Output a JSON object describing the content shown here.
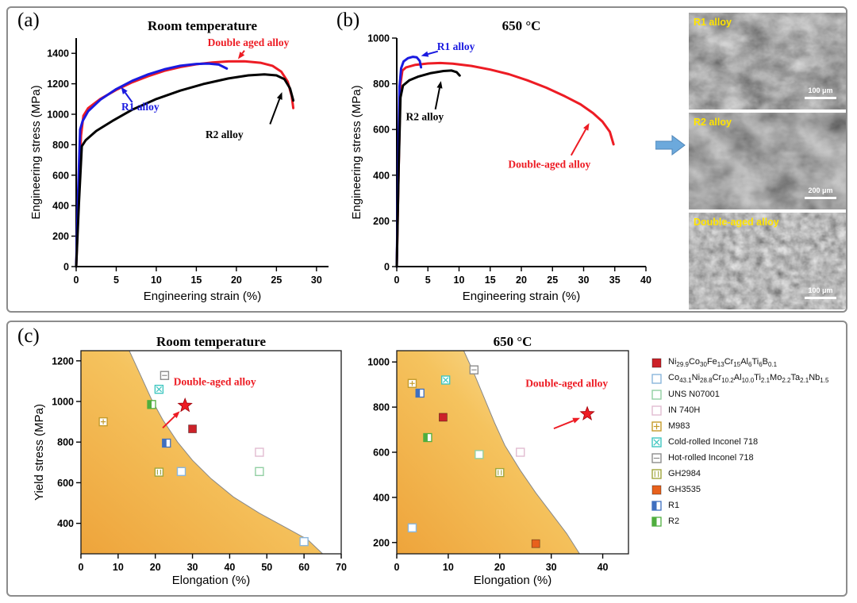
{
  "panels": {
    "a": "(a)",
    "b": "(b)",
    "c": "(c)"
  },
  "colors": {
    "red": "#ed1c24",
    "blue": "#1a1ae0",
    "black": "#000000",
    "arrow_blue": "#6ca9dc",
    "gold_region": [
      "#eea43b",
      "#f5c35e",
      "#fbeab0"
    ]
  },
  "sem": {
    "items": [
      {
        "label": "R1 alloy",
        "scale": "100 μm"
      },
      {
        "label": "R2 alloy",
        "scale": "200 μm"
      },
      {
        "label": "Double-aged alloy",
        "scale": "100 μm"
      }
    ]
  },
  "legend": {
    "items": [
      {
        "key": "ni",
        "label": "Ni_{29.9}Co_{30}Fe_{13}Cr_{15}Al_{6}Ti_{6}B_{0.1}",
        "marker": {
          "style": "filled",
          "color": "#cc2229"
        }
      },
      {
        "key": "co",
        "label": "Co_{43.1}Ni_{28.8}Cr_{10.2}Al_{10.0}Ti_{2.1}Mo_{2.2}Ta_{2.1}Nb_{1.5}",
        "marker": {
          "style": "open",
          "color": "#8ab6dc"
        }
      },
      {
        "key": "uns",
        "label": "UNS N07001",
        "marker": {
          "style": "open",
          "color": "#92cfa3"
        }
      },
      {
        "key": "in740h",
        "label": "IN 740H",
        "marker": {
          "style": "open",
          "color": "#e2bcd1"
        }
      },
      {
        "key": "m983",
        "label": "M983",
        "marker": {
          "style": "plus",
          "color": "#c49b2b"
        }
      },
      {
        "key": "cr718",
        "label": "Cold-rolled Inconel 718",
        "marker": {
          "style": "x",
          "color": "#3ec6c0"
        }
      },
      {
        "key": "hr718",
        "label": "Hot-rolled Inconel 718",
        "marker": {
          "style": "hlines",
          "color": "#8d8d8d"
        }
      },
      {
        "key": "gh2984",
        "label": "GH2984",
        "marker": {
          "style": "vlines",
          "color": "#a0a63c"
        }
      },
      {
        "key": "gh3535",
        "label": "GH3535",
        "marker": {
          "style": "filled",
          "color": "#e8611c"
        }
      },
      {
        "key": "r1",
        "label": "R1",
        "marker": {
          "style": "halfleft",
          "color": "#3f6fbf"
        }
      },
      {
        "key": "r2",
        "label": "R2",
        "marker": {
          "style": "halfleft",
          "color": "#4fae3e"
        }
      }
    ]
  },
  "chart_data": [
    {
      "id": "a",
      "type": "line",
      "title": "Room temperature",
      "xlabel": "Engineering strain (%)",
      "ylabel": "Engineering stress (MPa)",
      "xlim": [
        0,
        31.5
      ],
      "ylim": [
        0,
        1500
      ],
      "xticks": [
        0,
        5,
        10,
        15,
        20,
        25,
        30
      ],
      "yticks": [
        0,
        200,
        400,
        600,
        800,
        1000,
        1200,
        1400
      ],
      "series": [
        {
          "name": "Double aged alloy",
          "color": "#ed1c24",
          "points": [
            [
              0,
              0
            ],
            [
              0.3,
              430
            ],
            [
              0.6,
              860
            ],
            [
              0.9,
              990
            ],
            [
              1.5,
              1040
            ],
            [
              3,
              1100
            ],
            [
              5,
              1160
            ],
            [
              7,
              1210
            ],
            [
              9,
              1250
            ],
            [
              11,
              1285
            ],
            [
              13,
              1310
            ],
            [
              15,
              1328
            ],
            [
              17,
              1340
            ],
            [
              19,
              1347
            ],
            [
              21,
              1348
            ],
            [
              23,
              1338
            ],
            [
              24.5,
              1318
            ],
            [
              25.6,
              1280
            ],
            [
              26.4,
              1215
            ],
            [
              26.9,
              1120
            ],
            [
              27.1,
              1040
            ]
          ]
        },
        {
          "name": "R1 alloy",
          "color": "#1a1ae0",
          "points": [
            [
              0,
              0
            ],
            [
              0.25,
              500
            ],
            [
              0.5,
              900
            ],
            [
              0.8,
              955
            ],
            [
              1.5,
              1020
            ],
            [
              3,
              1095
            ],
            [
              5,
              1165
            ],
            [
              7,
              1220
            ],
            [
              9,
              1262
            ],
            [
              11,
              1295
            ],
            [
              13,
              1318
            ],
            [
              15,
              1330
            ],
            [
              16.5,
              1333
            ],
            [
              17.8,
              1326
            ],
            [
              18.8,
              1300
            ]
          ]
        },
        {
          "name": "R2 alloy",
          "color": "#000000",
          "points": [
            [
              0,
              0
            ],
            [
              0.35,
              420
            ],
            [
              0.7,
              790
            ],
            [
              1.2,
              830
            ],
            [
              2.5,
              890
            ],
            [
              4.5,
              955
            ],
            [
              7,
              1030
            ],
            [
              10,
              1100
            ],
            [
              13,
              1155
            ],
            [
              16,
              1200
            ],
            [
              19,
              1235
            ],
            [
              21.5,
              1255
            ],
            [
              23.5,
              1262
            ],
            [
              25,
              1255
            ],
            [
              26,
              1230
            ],
            [
              26.7,
              1170
            ],
            [
              27.1,
              1090
            ]
          ]
        }
      ],
      "annotations": [
        {
          "text": "Double aged alloy",
          "color": "#ed1c24",
          "tx": 21.5,
          "ty": 1448,
          "arrow": [
            21,
            1418,
            20.2,
            1362
          ]
        },
        {
          "text": "R1 alloy",
          "color": "#1a1ae0",
          "tx": 8,
          "ty": 1025,
          "arrow": [
            7,
            1078,
            5.6,
            1180
          ]
        },
        {
          "text": "R2 alloy",
          "color": "#000000",
          "tx": 18.5,
          "ty": 845,
          "arrow": [
            24.2,
            935,
            25.7,
            1145
          ]
        }
      ]
    },
    {
      "id": "b",
      "type": "line",
      "title": "650 °C",
      "xlabel": "Engineering strain (%)",
      "ylabel": "Engineering stress (MPa)",
      "xlim": [
        0,
        40
      ],
      "ylim": [
        0,
        1000
      ],
      "xticks": [
        0,
        5,
        10,
        15,
        20,
        25,
        30,
        35,
        40
      ],
      "yticks": [
        0,
        200,
        400,
        600,
        800,
        1000
      ],
      "series": [
        {
          "name": "Double-aged alloy",
          "color": "#ed1c24",
          "points": [
            [
              0,
              0
            ],
            [
              0.3,
              430
            ],
            [
              0.6,
              800
            ],
            [
              0.9,
              858
            ],
            [
              1.5,
              872
            ],
            [
              3,
              883
            ],
            [
              5,
              889
            ],
            [
              7,
              891
            ],
            [
              9,
              888
            ],
            [
              12,
              878
            ],
            [
              15,
              862
            ],
            [
              18,
              842
            ],
            [
              21,
              815
            ],
            [
              24,
              783
            ],
            [
              27,
              745
            ],
            [
              29.5,
              710
            ],
            [
              31.5,
              672
            ],
            [
              33,
              635
            ],
            [
              34.2,
              590
            ],
            [
              34.8,
              535
            ]
          ]
        },
        {
          "name": "R1 alloy",
          "color": "#1a1ae0",
          "points": [
            [
              0,
              0
            ],
            [
              0.2,
              400
            ],
            [
              0.45,
              790
            ],
            [
              0.7,
              868
            ],
            [
              1.1,
              898
            ],
            [
              1.8,
              912
            ],
            [
              2.6,
              918
            ],
            [
              3.2,
              916
            ],
            [
              3.7,
              900
            ],
            [
              3.9,
              872
            ]
          ]
        },
        {
          "name": "R2 alloy",
          "color": "#000000",
          "points": [
            [
              0,
              0
            ],
            [
              0.3,
              430
            ],
            [
              0.6,
              740
            ],
            [
              1,
              792
            ],
            [
              2,
              815
            ],
            [
              3.5,
              832
            ],
            [
              5.5,
              847
            ],
            [
              7.5,
              856
            ],
            [
              8.8,
              858
            ],
            [
              9.6,
              851
            ],
            [
              10.1,
              836
            ]
          ]
        }
      ],
      "annotations": [
        {
          "text": "R1 alloy",
          "color": "#1a1ae0",
          "tx": 9.5,
          "ty": 948,
          "arrow": [
            6.6,
            942,
            3.9,
            922
          ]
        },
        {
          "text": "R2 alloy",
          "color": "#000000",
          "tx": 4.5,
          "ty": 640,
          "arrow": [
            6.2,
            688,
            7.1,
            812
          ]
        },
        {
          "text": "Double-aged alloy",
          "color": "#ed1c24",
          "tx": 24.5,
          "ty": 432,
          "arrow": [
            28,
            487,
            30.9,
            628
          ]
        }
      ]
    },
    {
      "id": "c1",
      "type": "scatter",
      "title": "Room temperature",
      "xlabel": "Elongation (%)",
      "ylabel": "Yield stress (MPa)",
      "xlim": [
        0,
        70
      ],
      "ylim": [
        250,
        1250
      ],
      "xticks": [
        0,
        10,
        20,
        30,
        40,
        50,
        60,
        70
      ],
      "yticks": [
        400,
        600,
        800,
        1000,
        1200
      ],
      "region": [
        [
          13,
          1250
        ],
        [
          16,
          1130
        ],
        [
          19,
          1010
        ],
        [
          22,
          910
        ],
        [
          26,
          800
        ],
        [
          30,
          710
        ],
        [
          35,
          620
        ],
        [
          41,
          530
        ],
        [
          48,
          450
        ],
        [
          55,
          380
        ],
        [
          61,
          320
        ],
        [
          65,
          250
        ]
      ],
      "points": [
        {
          "alloy": "m983",
          "x": 6,
          "y": 900
        },
        {
          "alloy": "r2",
          "x": 19,
          "y": 985
        },
        {
          "alloy": "cr718",
          "x": 21,
          "y": 1060
        },
        {
          "alloy": "hr718",
          "x": 22.5,
          "y": 1128
        },
        {
          "alloy": "gh2984",
          "x": 21,
          "y": 652
        },
        {
          "alloy": "r1",
          "x": 23,
          "y": 795
        },
        {
          "alloy": "co",
          "x": 27,
          "y": 655
        },
        {
          "alloy": "ni",
          "x": 30,
          "y": 865
        },
        {
          "alloy": "in740h",
          "x": 48,
          "y": 750
        },
        {
          "alloy": "uns",
          "x": 48,
          "y": 655
        },
        {
          "alloy": "co",
          "x": 60,
          "y": 310
        }
      ],
      "star": {
        "x": 28,
        "y": 980,
        "label": "Double-aged alloy",
        "label_at": [
          36,
          1080
        ],
        "arrow": [
          22,
          870,
          26.6,
          952
        ]
      }
    },
    {
      "id": "c2",
      "type": "scatter",
      "title": "650 °C",
      "xlabel": "Elongation (%)",
      "ylabel": "",
      "xlim": [
        0,
        45
      ],
      "ylim": [
        150,
        1050
      ],
      "xticks": [
        0,
        10,
        20,
        30,
        40
      ],
      "yticks": [
        200,
        400,
        600,
        800,
        1000
      ],
      "region": [
        [
          13,
          1050
        ],
        [
          15,
          950
        ],
        [
          17,
          840
        ],
        [
          19,
          730
        ],
        [
          21,
          630
        ],
        [
          24,
          520
        ],
        [
          27,
          420
        ],
        [
          30,
          330
        ],
        [
          33,
          240
        ],
        [
          35.5,
          150
        ]
      ],
      "points": [
        {
          "alloy": "m983",
          "x": 3,
          "y": 905
        },
        {
          "alloy": "r1",
          "x": 4.5,
          "y": 862
        },
        {
          "alloy": "cr718",
          "x": 9.5,
          "y": 920
        },
        {
          "alloy": "ni",
          "x": 9,
          "y": 755
        },
        {
          "alloy": "r2",
          "x": 6,
          "y": 665
        },
        {
          "alloy": "co",
          "x": 3,
          "y": 265
        },
        {
          "alloy": "hr718",
          "x": 15,
          "y": 965
        },
        {
          "alloy": "uns",
          "x": 16,
          "y": 590
        },
        {
          "alloy": "gh2984",
          "x": 20,
          "y": 510
        },
        {
          "alloy": "in740h",
          "x": 24,
          "y": 600
        },
        {
          "alloy": "gh3535",
          "x": 27,
          "y": 195
        }
      ],
      "star": {
        "x": 37,
        "y": 770,
        "label": "Double-aged alloy",
        "label_at": [
          33,
          890
        ],
        "arrow": [
          30.5,
          705,
          35.6,
          752
        ]
      }
    }
  ]
}
